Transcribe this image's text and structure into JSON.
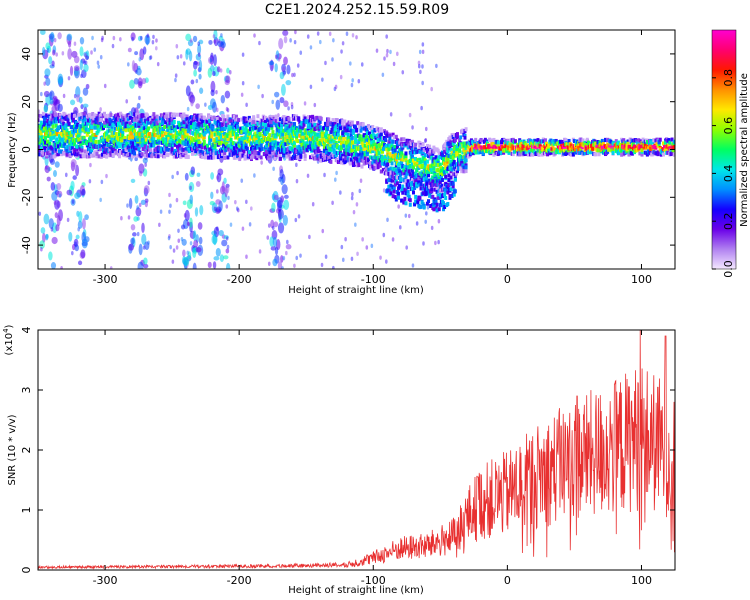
{
  "title": "C2E1.2024.252.15.59.R09",
  "chart_data": [
    {
      "type": "heatmap",
      "xlabel": "Height of straight line (km)",
      "ylabel": "Frequency (Hz)",
      "xlim": [
        -350,
        125
      ],
      "ylim": [
        -50,
        50
      ],
      "x_ticks": [
        -300,
        -200,
        -100,
        0,
        100
      ],
      "y_ticks": [
        -40,
        -20,
        0,
        20,
        40
      ],
      "colorbar": {
        "label": "Normalized spectral amplitude",
        "range": [
          0,
          1
        ],
        "ticks": [
          0.0,
          0.2,
          0.4,
          0.6,
          0.8
        ],
        "colors": [
          "#f4e8ff",
          "#b080f0",
          "#6a00e8",
          "#1400ff",
          "#0090ff",
          "#00e8e8",
          "#00ff60",
          "#90ff00",
          "#ffe800",
          "#ff9000",
          "#ff1800",
          "#ff0070",
          "#ff00d0"
        ]
      },
      "ridge": [
        {
          "x": -350,
          "f": 6
        },
        {
          "x": -300,
          "f": 6
        },
        {
          "x": -250,
          "f": 6
        },
        {
          "x": -200,
          "f": 5
        },
        {
          "x": -150,
          "f": 5
        },
        {
          "x": -120,
          "f": 3
        },
        {
          "x": -100,
          "f": 1
        },
        {
          "x": -80,
          "f": -4
        },
        {
          "x": -60,
          "f": -7
        },
        {
          "x": -50,
          "f": -9
        },
        {
          "x": -40,
          "f": -2
        },
        {
          "x": -25,
          "f": 1
        },
        {
          "x": 0,
          "f": 1
        },
        {
          "x": 50,
          "f": 1
        },
        {
          "x": 100,
          "f": 1
        },
        {
          "x": 125,
          "f": 1
        }
      ],
      "vertical_streaks_x": [
        -340,
        -320,
        -275,
        -235,
        -215,
        -170
      ]
    },
    {
      "type": "line",
      "xlabel": "Height of straight line (km)",
      "ylabel": "SNR (10 * v/v)",
      "scale_note": "(x10",
      "scale_exp": "4",
      "scale_close": ")",
      "xlim": [
        -350,
        125
      ],
      "ylim": [
        0,
        4
      ],
      "x_ticks": [
        -300,
        -200,
        -100,
        0,
        100
      ],
      "y_ticks": [
        0,
        1,
        2,
        3,
        4
      ],
      "color": "#e83030",
      "envelope": [
        {
          "x": -350,
          "y": 0.05
        },
        {
          "x": -200,
          "y": 0.07
        },
        {
          "x": -150,
          "y": 0.08
        },
        {
          "x": -120,
          "y": 0.1
        },
        {
          "x": -100,
          "y": 0.25
        },
        {
          "x": -80,
          "y": 0.45
        },
        {
          "x": -60,
          "y": 0.5
        },
        {
          "x": -40,
          "y": 0.7
        },
        {
          "x": -30,
          "y": 1.1
        },
        {
          "x": -20,
          "y": 1.4
        },
        {
          "x": 0,
          "y": 1.6
        },
        {
          "x": 25,
          "y": 2.0
        },
        {
          "x": 50,
          "y": 2.3
        },
        {
          "x": 75,
          "y": 2.5
        },
        {
          "x": 100,
          "y": 2.8
        },
        {
          "x": 125,
          "y": 2.4
        }
      ],
      "peaks": [
        {
          "x": 99,
          "y": 4.0
        },
        {
          "x": 118,
          "y": 3.9
        },
        {
          "x": 80,
          "y": 3.1
        },
        {
          "x": 52,
          "y": 2.9
        },
        {
          "x": -22,
          "y": 1.55
        },
        {
          "x": 40,
          "y": 2.4
        }
      ]
    }
  ]
}
